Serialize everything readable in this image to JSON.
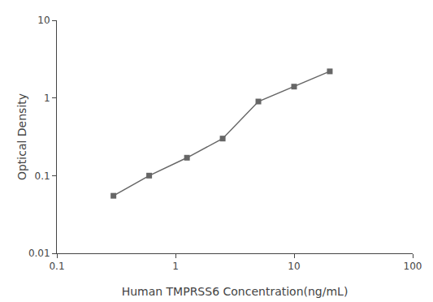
{
  "chart_data": {
    "type": "line",
    "x": [
      0.3,
      0.6,
      1.25,
      2.5,
      5,
      10,
      20
    ],
    "values": [
      0.055,
      0.1,
      0.17,
      0.3,
      0.9,
      1.4,
      2.2
    ],
    "xlabel": "Human TMPRSS6 Concentration(ng/mL)",
    "ylabel": "Optical Density",
    "xlim": [
      0.1,
      100
    ],
    "ylim": [
      0.01,
      10
    ],
    "xticks": [
      0.1,
      1,
      10,
      100
    ],
    "yticks": [
      0.01,
      0.1,
      1,
      10
    ],
    "log": true,
    "grid": false,
    "color": "#666666",
    "marker": "square",
    "line_style": "solid"
  }
}
